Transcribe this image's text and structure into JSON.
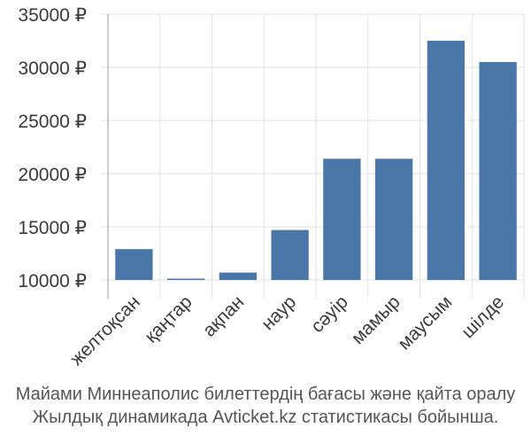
{
  "chart_data": {
    "type": "bar",
    "categories": [
      "желтоқсан",
      "қаңтар",
      "ақпан",
      "наур",
      "сәуір",
      "мамыр",
      "маусым",
      "шілде"
    ],
    "values": [
      12900,
      10100,
      10700,
      14700,
      21400,
      21400,
      32500,
      30500
    ],
    "ylim": [
      10000,
      35000
    ],
    "yticks": [
      10000,
      15000,
      20000,
      25000,
      30000,
      35000
    ],
    "ytick_labels": [
      "10000 ₽",
      "15000 ₽",
      "20000 ₽",
      "25000 ₽",
      "30000 ₽",
      "35000 ₽"
    ],
    "bar_color": "#4a76a8",
    "grid": true
  },
  "caption": {
    "line1": "Майами Миннеаполис билеттердің бағасы және қайта оралу",
    "line2": "Жылдық динамикада Avticket.kz статистикасы бойынша."
  }
}
